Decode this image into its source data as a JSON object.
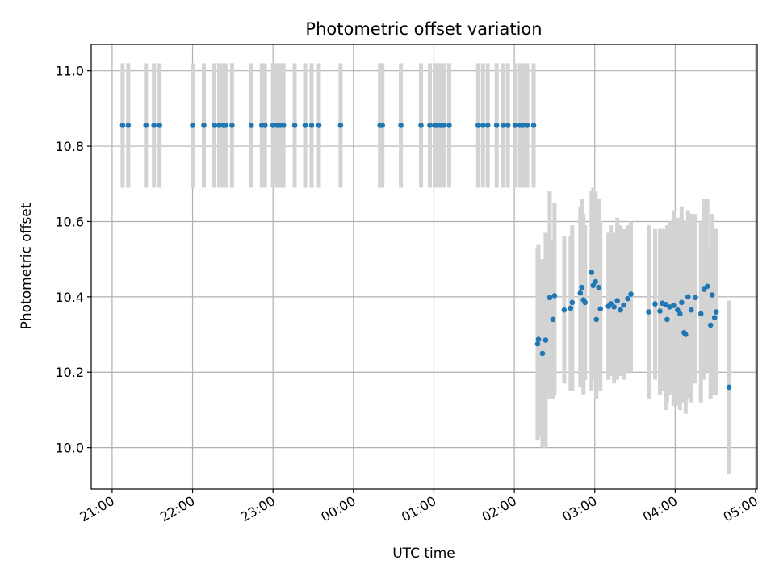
{
  "chart_data": {
    "type": "scatter",
    "title": "Photometric offset variation",
    "xlabel": "UTC time",
    "ylabel": "Photometric offset",
    "x_axis": "time (hours, UTC; ticks wrap at midnight)",
    "xlim": [
      20.74,
      29.02
    ],
    "ylim": [
      9.89,
      11.07
    ],
    "xticks": [
      {
        "value": 21,
        "label": "21:00"
      },
      {
        "value": 22,
        "label": "22:00"
      },
      {
        "value": 23,
        "label": "23:00"
      },
      {
        "value": 24,
        "label": "00:00"
      },
      {
        "value": 25,
        "label": "01:00"
      },
      {
        "value": 26,
        "label": "02:00"
      },
      {
        "value": 27,
        "label": "03:00"
      },
      {
        "value": 28,
        "label": "04:00"
      },
      {
        "value": 29,
        "label": "05:00"
      }
    ],
    "yticks": [
      {
        "value": 10.0,
        "label": "10.0"
      },
      {
        "value": 10.2,
        "label": "10.2"
      },
      {
        "value": 10.4,
        "label": "10.4"
      },
      {
        "value": 10.6,
        "label": "10.6"
      },
      {
        "value": 10.8,
        "label": "10.8"
      },
      {
        "value": 11.0,
        "label": "11.0"
      }
    ],
    "grid": true,
    "colors": {
      "points": "#1f77b4",
      "errorbars": "#d3d3d3",
      "grid": "#b0b0b0"
    },
    "series": [
      {
        "x": [
          21.13,
          21.2,
          21.42,
          21.52,
          21.59,
          22.0,
          22.14,
          22.27,
          22.33,
          22.38,
          22.41,
          22.49,
          22.73,
          22.86,
          22.9,
          23.0,
          23.05,
          23.09,
          23.13,
          23.27,
          23.4,
          23.48,
          23.57,
          23.84,
          24.33,
          24.36,
          24.59,
          24.84,
          24.95,
          25.01,
          25.04,
          25.08,
          25.12,
          25.19,
          25.55,
          25.61,
          25.67,
          25.78,
          25.86,
          25.92,
          26.01,
          26.07,
          26.11,
          26.16,
          26.24
        ],
        "y": [
          10.855,
          10.855,
          10.855,
          10.855,
          10.855,
          10.855,
          10.855,
          10.855,
          10.855,
          10.855,
          10.855,
          10.855,
          10.855,
          10.855,
          10.855,
          10.855,
          10.855,
          10.855,
          10.855,
          10.855,
          10.855,
          10.855,
          10.855,
          10.855,
          10.855,
          10.855,
          10.855,
          10.855,
          10.855,
          10.855,
          10.855,
          10.855,
          10.855,
          10.855,
          10.855,
          10.855,
          10.855,
          10.855,
          10.855,
          10.855,
          10.855,
          10.855,
          10.855,
          10.855,
          10.855
        ],
        "yerr": [
          0.165,
          0.165,
          0.165,
          0.165,
          0.165,
          0.165,
          0.165,
          0.165,
          0.165,
          0.165,
          0.165,
          0.165,
          0.165,
          0.165,
          0.165,
          0.165,
          0.165,
          0.165,
          0.165,
          0.165,
          0.165,
          0.165,
          0.165,
          0.165,
          0.165,
          0.165,
          0.165,
          0.165,
          0.165,
          0.165,
          0.165,
          0.165,
          0.165,
          0.165,
          0.165,
          0.165,
          0.165,
          0.165,
          0.165,
          0.165,
          0.165,
          0.165,
          0.165,
          0.165,
          0.165
        ]
      },
      {
        "x": [
          26.29,
          26.3,
          26.35,
          26.39,
          26.44,
          26.48,
          26.5,
          26.62,
          26.7,
          26.72,
          26.82,
          26.84,
          26.86,
          26.88,
          26.96,
          26.98,
          27.01,
          27.02,
          27.05,
          27.07,
          27.17,
          27.2,
          27.24,
          27.28,
          27.32,
          27.36,
          27.41,
          27.45,
          27.67,
          27.75,
          27.81,
          27.84,
          27.88,
          27.9,
          27.93,
          27.98,
          28.03,
          28.06,
          28.08,
          28.11,
          28.13,
          28.16,
          28.2,
          28.25,
          28.32,
          28.36,
          28.4,
          28.44,
          28.46,
          28.49,
          28.51,
          28.67
        ],
        "y": [
          10.275,
          10.287,
          10.25,
          10.285,
          10.398,
          10.34,
          10.403,
          10.365,
          10.37,
          10.385,
          10.41,
          10.425,
          10.392,
          10.385,
          10.465,
          10.43,
          10.44,
          10.34,
          10.425,
          10.368,
          10.375,
          10.382,
          10.373,
          10.39,
          10.365,
          10.378,
          10.395,
          10.407,
          10.36,
          10.381,
          10.362,
          10.383,
          10.38,
          10.34,
          10.373,
          10.377,
          10.365,
          10.355,
          10.385,
          10.305,
          10.3,
          10.4,
          10.365,
          10.398,
          10.355,
          10.42,
          10.428,
          10.325,
          10.405,
          10.345,
          10.36,
          10.16
        ]
      }
    ],
    "error_bars": {
      "x": [
        26.29,
        26.3,
        26.35,
        26.39,
        26.44,
        26.48,
        26.5,
        26.62,
        26.7,
        26.72,
        26.82,
        26.84,
        26.86,
        26.88,
        26.96,
        26.98,
        27.01,
        27.02,
        27.05,
        27.07,
        27.17,
        27.2,
        27.24,
        27.28,
        27.32,
        27.36,
        27.41,
        27.45,
        27.67,
        27.75,
        27.81,
        27.84,
        27.88,
        27.9,
        27.93,
        27.98,
        28.03,
        28.06,
        28.08,
        28.11,
        28.13,
        28.16,
        28.2,
        28.25,
        28.32,
        28.36,
        28.4,
        28.44,
        28.46,
        28.49,
        28.51,
        28.67
      ],
      "low": [
        10.02,
        10.03,
        10.0,
        10.0,
        10.13,
        10.13,
        10.14,
        10.17,
        10.15,
        10.15,
        10.16,
        10.17,
        10.14,
        10.18,
        10.15,
        10.18,
        10.18,
        10.13,
        10.2,
        10.15,
        10.18,
        10.19,
        10.17,
        10.18,
        10.19,
        10.18,
        10.2,
        10.2,
        10.13,
        10.18,
        10.14,
        10.15,
        10.1,
        10.12,
        10.14,
        10.11,
        10.11,
        10.1,
        10.12,
        10.12,
        10.09,
        10.13,
        10.12,
        10.17,
        10.12,
        10.18,
        10.2,
        10.13,
        10.14,
        10.14,
        10.14,
        9.93
      ],
      "high": [
        10.53,
        10.54,
        10.5,
        10.57,
        10.68,
        10.55,
        10.65,
        10.56,
        10.56,
        10.59,
        10.64,
        10.66,
        10.62,
        10.59,
        10.68,
        10.69,
        10.68,
        10.55,
        10.66,
        10.6,
        10.57,
        10.59,
        10.57,
        10.61,
        10.59,
        10.58,
        10.59,
        10.6,
        10.59,
        10.58,
        10.58,
        10.58,
        10.58,
        10.59,
        10.6,
        10.63,
        10.61,
        10.6,
        10.64,
        10.6,
        10.5,
        10.63,
        10.62,
        10.62,
        10.6,
        10.66,
        10.66,
        10.52,
        10.62,
        10.56,
        10.58,
        10.39
      ]
    }
  }
}
